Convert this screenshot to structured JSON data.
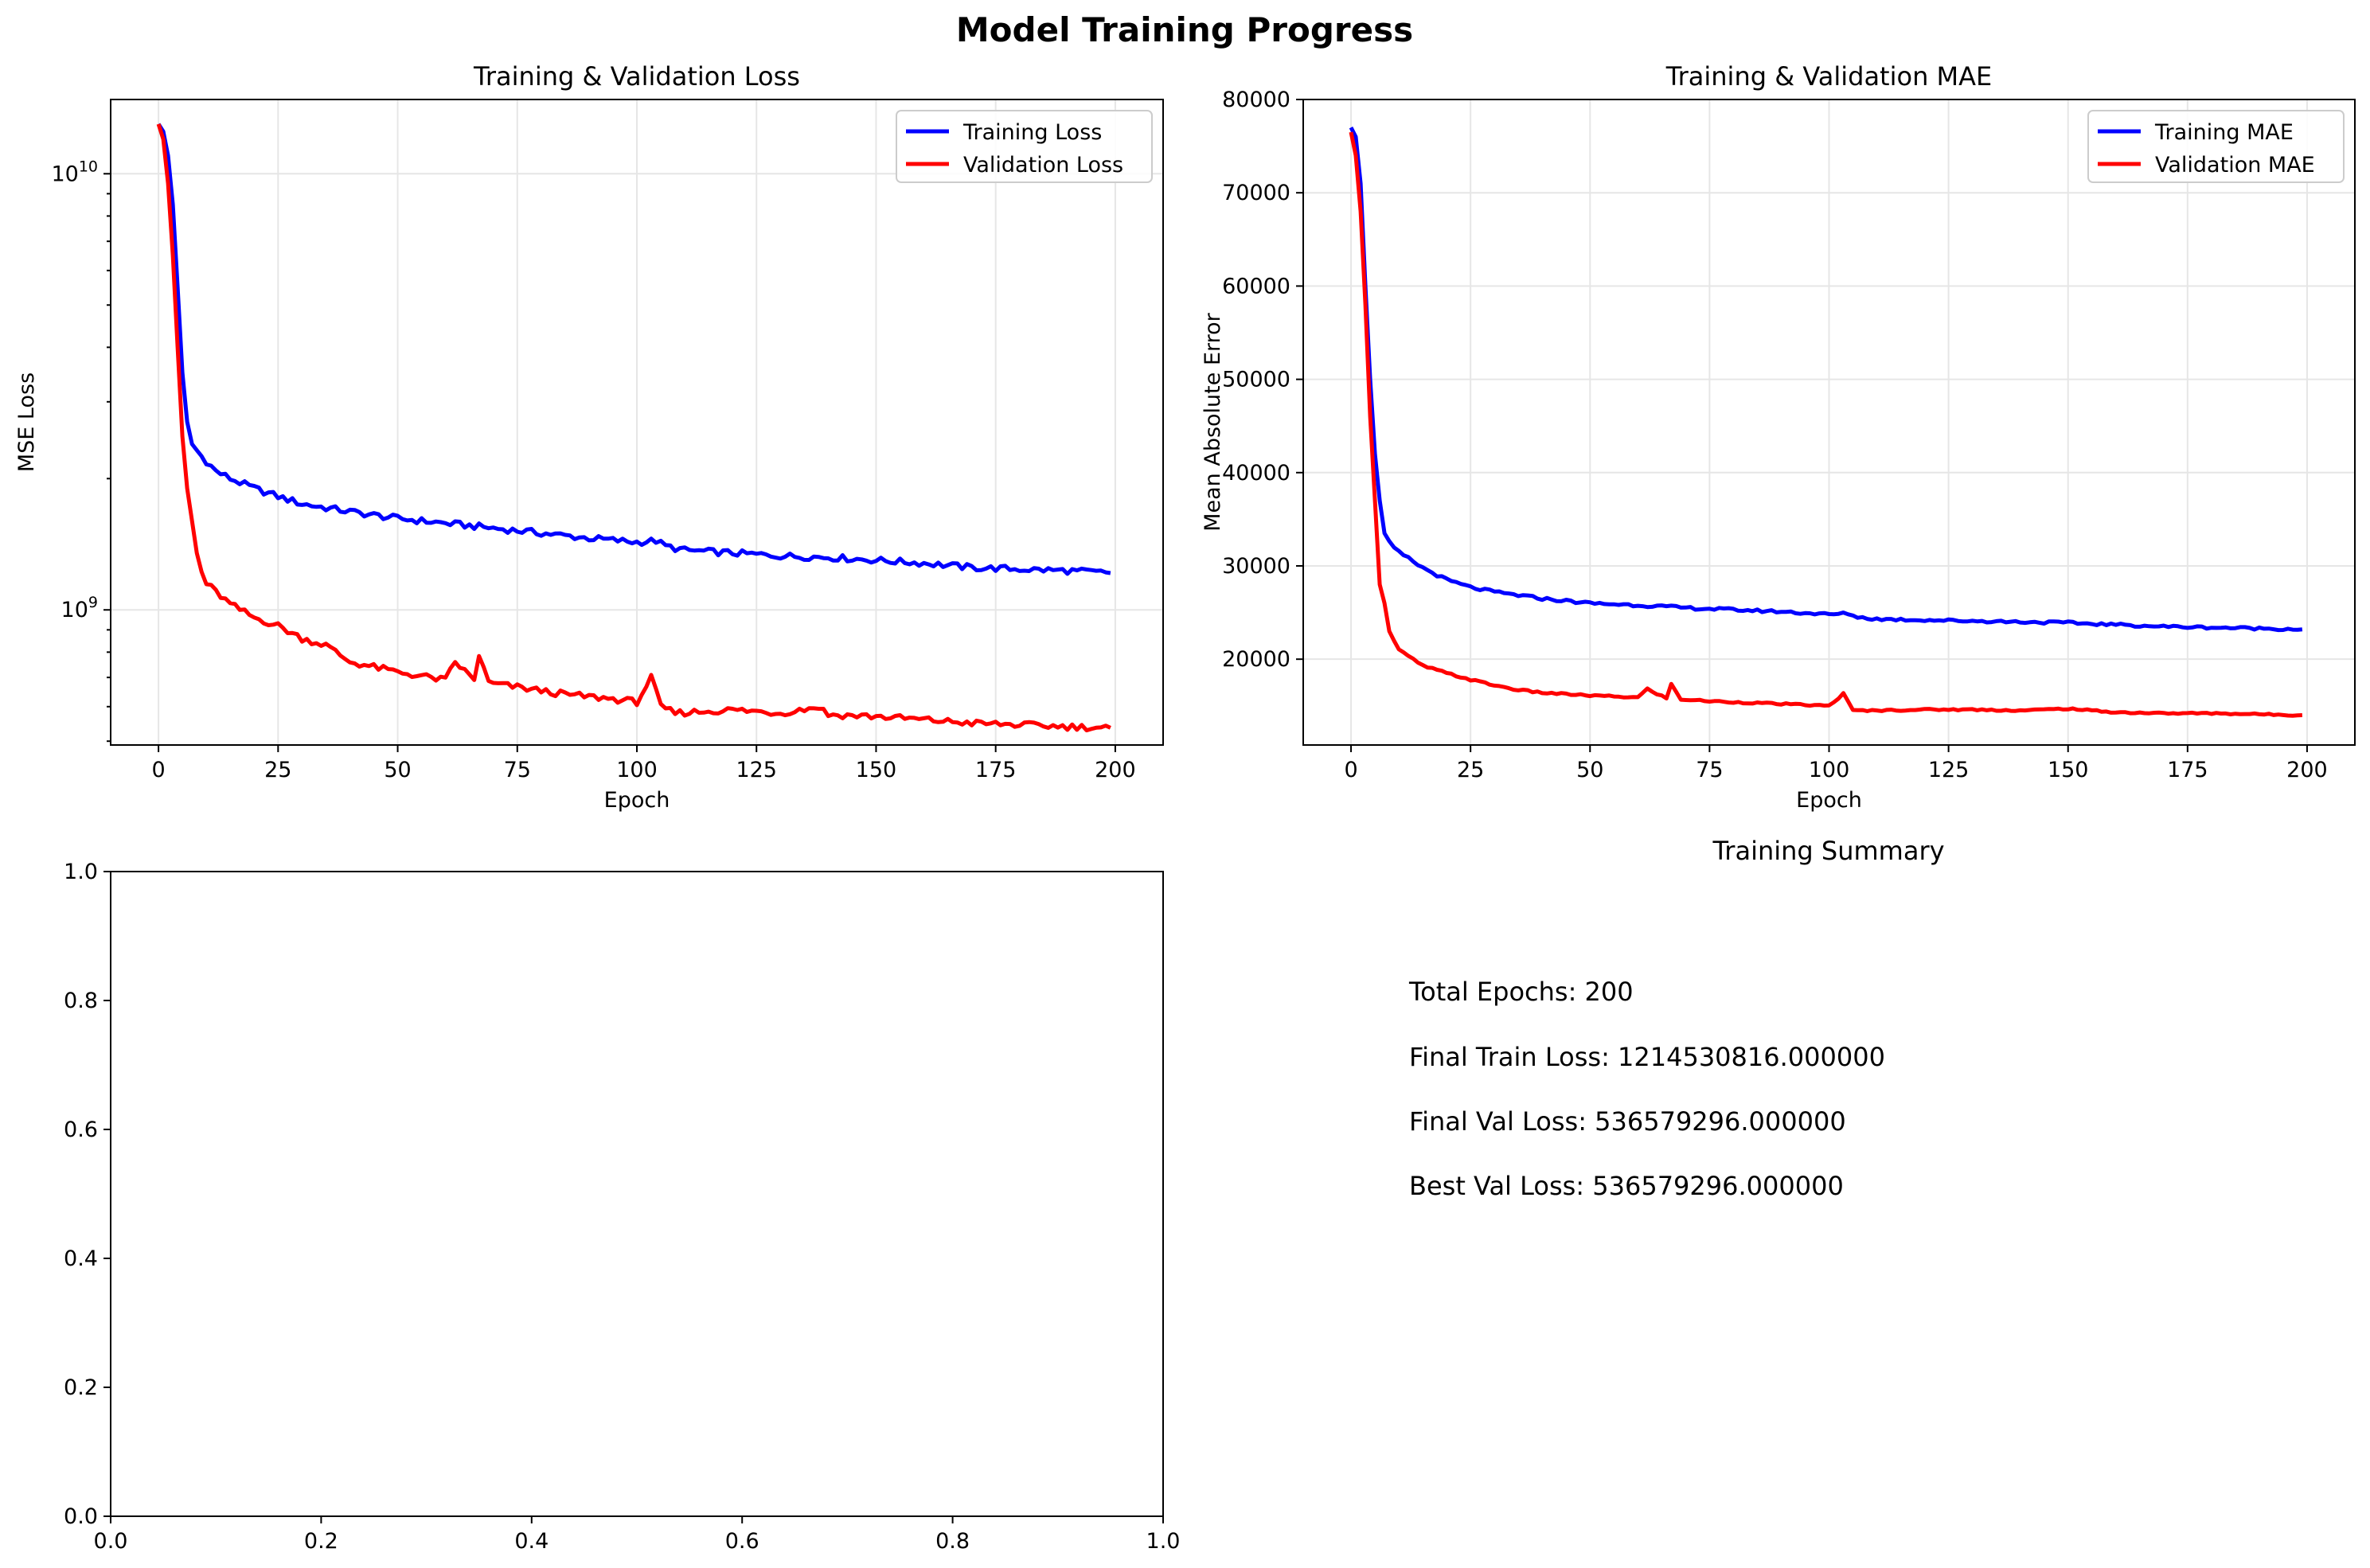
{
  "figure": {
    "suptitle": "Model Training Progress"
  },
  "colors": {
    "train": "#0000ff",
    "val": "#ff0000",
    "grid": "#e6e6e6",
    "axis": "#000000"
  },
  "chart_data": [
    {
      "id": "loss",
      "type": "line",
      "title": "Training & Validation Loss",
      "xlabel": "Epoch",
      "ylabel": "MSE Loss",
      "yscale": "log",
      "xlim": [
        -10,
        210
      ],
      "ylim": [
        490000000,
        14800000000
      ],
      "xticks": [
        0,
        25,
        50,
        75,
        100,
        125,
        150,
        175,
        200
      ],
      "yticks_major": [
        {
          "value": 1000000000,
          "base": "10",
          "exp": "9"
        },
        {
          "value": 10000000000,
          "base": "10",
          "exp": "10"
        }
      ],
      "grid": true,
      "legend": "top-right",
      "series": [
        {
          "name": "Training Loss",
          "color": "#0000ff",
          "keypoints": [
            [
              0,
              13000000000
            ],
            [
              1,
              12500000000
            ],
            [
              2,
              11000000000
            ],
            [
              3,
              8500000000
            ],
            [
              4,
              5500000000
            ],
            [
              5,
              3500000000
            ],
            [
              6,
              2700000000
            ],
            [
              7,
              2400000000
            ],
            [
              9,
              2250000000
            ],
            [
              12,
              2080000000
            ],
            [
              15,
              2000000000
            ],
            [
              20,
              1900000000
            ],
            [
              25,
              1820000000
            ],
            [
              30,
              1750000000
            ],
            [
              40,
              1680000000
            ],
            [
              50,
              1620000000
            ],
            [
              60,
              1580000000
            ],
            [
              70,
              1540000000
            ],
            [
              80,
              1500000000
            ],
            [
              90,
              1460000000
            ],
            [
              100,
              1430000000
            ],
            [
              104,
              1440000000
            ],
            [
              106,
              1400000000
            ],
            [
              110,
              1370000000
            ],
            [
              120,
              1350000000
            ],
            [
              130,
              1330000000
            ],
            [
              140,
              1320000000
            ],
            [
              150,
              1300000000
            ],
            [
              160,
              1280000000
            ],
            [
              170,
              1250000000
            ],
            [
              180,
              1240000000
            ],
            [
              190,
              1230000000
            ],
            [
              199,
              1214530816
            ]
          ]
        },
        {
          "name": "Validation Loss",
          "color": "#ff0000",
          "keypoints": [
            [
              0,
              13000000000
            ],
            [
              1,
              12000000000
            ],
            [
              2,
              9500000000
            ],
            [
              3,
              6500000000
            ],
            [
              4,
              4000000000
            ],
            [
              5,
              2500000000
            ],
            [
              6,
              1900000000
            ],
            [
              7,
              1600000000
            ],
            [
              8,
              1350000000
            ],
            [
              9,
              1220000000
            ],
            [
              10,
              1150000000
            ],
            [
              12,
              1100000000
            ],
            [
              15,
              1030000000
            ],
            [
              20,
              960000000
            ],
            [
              25,
              920000000
            ],
            [
              30,
              860000000
            ],
            [
              35,
              830000000
            ],
            [
              40,
              760000000
            ],
            [
              50,
              720000000
            ],
            [
              60,
              690000000
            ],
            [
              62,
              760000000
            ],
            [
              66,
              690000000
            ],
            [
              67,
              790000000
            ],
            [
              69,
              680000000
            ],
            [
              75,
              665000000
            ],
            [
              85,
              640000000
            ],
            [
              95,
              625000000
            ],
            [
              100,
              615000000
            ],
            [
              103,
              700000000
            ],
            [
              105,
              600000000
            ],
            [
              108,
              580000000
            ],
            [
              120,
              590000000
            ],
            [
              130,
              580000000
            ],
            [
              138,
              600000000
            ],
            [
              140,
              575000000
            ],
            [
              150,
              570000000
            ],
            [
              160,
              560000000
            ],
            [
              170,
              550000000
            ],
            [
              180,
              545000000
            ],
            [
              190,
              540000000
            ],
            [
              199,
              536579296
            ]
          ]
        }
      ]
    },
    {
      "id": "mae",
      "type": "line",
      "title": "Training & Validation MAE",
      "xlabel": "Epoch",
      "ylabel": "Mean Absolute Error",
      "xlim": [
        -10,
        210
      ],
      "ylim": [
        10800,
        80000
      ],
      "xticks": [
        0,
        25,
        50,
        75,
        100,
        125,
        150,
        175,
        200
      ],
      "yticks": [
        20000,
        30000,
        40000,
        50000,
        60000,
        70000,
        80000
      ],
      "grid": true,
      "legend": "top-right",
      "series": [
        {
          "name": "Training MAE",
          "color": "#0000ff",
          "keypoints": [
            [
              0,
              77000
            ],
            [
              1,
              76000
            ],
            [
              2,
              71000
            ],
            [
              3,
              60000
            ],
            [
              4,
              50000
            ],
            [
              5,
              42000
            ],
            [
              6,
              37000
            ],
            [
              7,
              33500
            ],
            [
              9,
              31800
            ],
            [
              12,
              30800
            ],
            [
              15,
              29800
            ],
            [
              20,
              28500
            ],
            [
              25,
              27700
            ],
            [
              30,
              27200
            ],
            [
              40,
              26500
            ],
            [
              50,
              26000
            ],
            [
              60,
              25800
            ],
            [
              70,
              25500
            ],
            [
              80,
              25300
            ],
            [
              90,
              25100
            ],
            [
              100,
              24800
            ],
            [
              104,
              24900
            ],
            [
              106,
              24500
            ],
            [
              110,
              24300
            ],
            [
              120,
              24200
            ],
            [
              130,
              24100
            ],
            [
              140,
              24000
            ],
            [
              150,
              23900
            ],
            [
              160,
              23700
            ],
            [
              170,
              23500
            ],
            [
              180,
              23400
            ],
            [
              190,
              23300
            ],
            [
              199,
              23200
            ]
          ]
        },
        {
          "name": "Validation MAE",
          "color": "#ff0000",
          "keypoints": [
            [
              0,
              76500
            ],
            [
              1,
              74000
            ],
            [
              2,
              68000
            ],
            [
              3,
              58000
            ],
            [
              4,
              46000
            ],
            [
              5,
              37000
            ],
            [
              6,
              28000
            ],
            [
              7,
              26000
            ],
            [
              8,
              23000
            ],
            [
              10,
              21000
            ],
            [
              12,
              20300
            ],
            [
              15,
              19300
            ],
            [
              20,
              18500
            ],
            [
              25,
              17800
            ],
            [
              30,
              17200
            ],
            [
              35,
              16700
            ],
            [
              40,
              16400
            ],
            [
              50,
              16100
            ],
            [
              60,
              15900
            ],
            [
              62,
              16800
            ],
            [
              66,
              15800
            ],
            [
              67,
              17300
            ],
            [
              69,
              15700
            ],
            [
              75,
              15500
            ],
            [
              85,
              15300
            ],
            [
              95,
              15100
            ],
            [
              100,
              15000
            ],
            [
              103,
              16300
            ],
            [
              105,
              14500
            ],
            [
              110,
              14500
            ],
            [
              120,
              14600
            ],
            [
              130,
              14600
            ],
            [
              140,
              14500
            ],
            [
              150,
              14700
            ],
            [
              160,
              14300
            ],
            [
              170,
              14200
            ],
            [
              180,
              14200
            ],
            [
              190,
              14100
            ],
            [
              199,
              14000
            ]
          ]
        }
      ]
    },
    {
      "id": "empty",
      "type": "line",
      "title": "",
      "xlim": [
        0,
        1
      ],
      "ylim": [
        0,
        1
      ],
      "xticks": [
        "0.0",
        "0.2",
        "0.4",
        "0.6",
        "0.8",
        "1.0"
      ],
      "yticks": [
        "0.0",
        "0.2",
        "0.4",
        "0.6",
        "0.8",
        "1.0"
      ],
      "grid": false,
      "series": []
    }
  ],
  "summary": {
    "title": "Training Summary",
    "lines": [
      "Total Epochs: 200",
      "Final Train Loss: 1214530816.000000",
      "Final Val Loss: 536579296.000000",
      "Best Val Loss: 536579296.000000"
    ]
  }
}
